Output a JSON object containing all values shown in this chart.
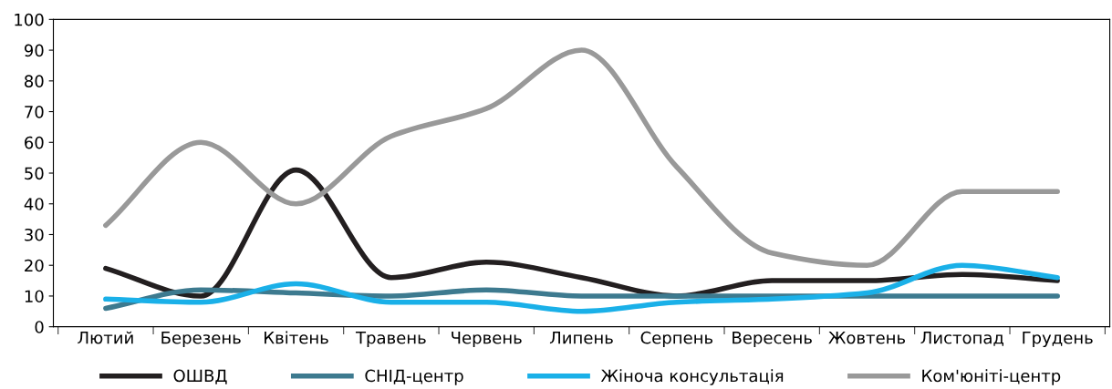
{
  "chart_data": {
    "type": "line",
    "categories": [
      "Лютий",
      "Березень",
      "Квітень",
      "Травень",
      "Червень",
      "Липень",
      "Серпень",
      "Вересень",
      "Жовтень",
      "Листопад",
      "Грудень"
    ],
    "series": [
      {
        "name": "ОШВД",
        "color": "#231f20",
        "values": [
          19,
          10,
          51,
          16,
          21,
          16,
          10,
          15,
          15,
          17,
          15
        ]
      },
      {
        "name": "СНІД-центр",
        "color": "#3d7a8f",
        "values": [
          6,
          12,
          11,
          10,
          12,
          10,
          10,
          10,
          10,
          10,
          10
        ]
      },
      {
        "name": "Жіноча консультація",
        "color": "#1ab0e8",
        "values": [
          9,
          8,
          14,
          8,
          8,
          5,
          8,
          9,
          11,
          20,
          16
        ]
      },
      {
        "name": "Ком'юніті-центр",
        "color": "#999999",
        "values": [
          33,
          60,
          40,
          62,
          71,
          90,
          52,
          24,
          20,
          44,
          44
        ]
      }
    ],
    "ylim": [
      0,
      100
    ],
    "yticks": [
      0,
      10,
      20,
      30,
      40,
      50,
      60,
      70,
      80,
      90,
      100
    ],
    "grid": false,
    "legend": "bottom",
    "marker": "none",
    "line_style": "solid"
  }
}
